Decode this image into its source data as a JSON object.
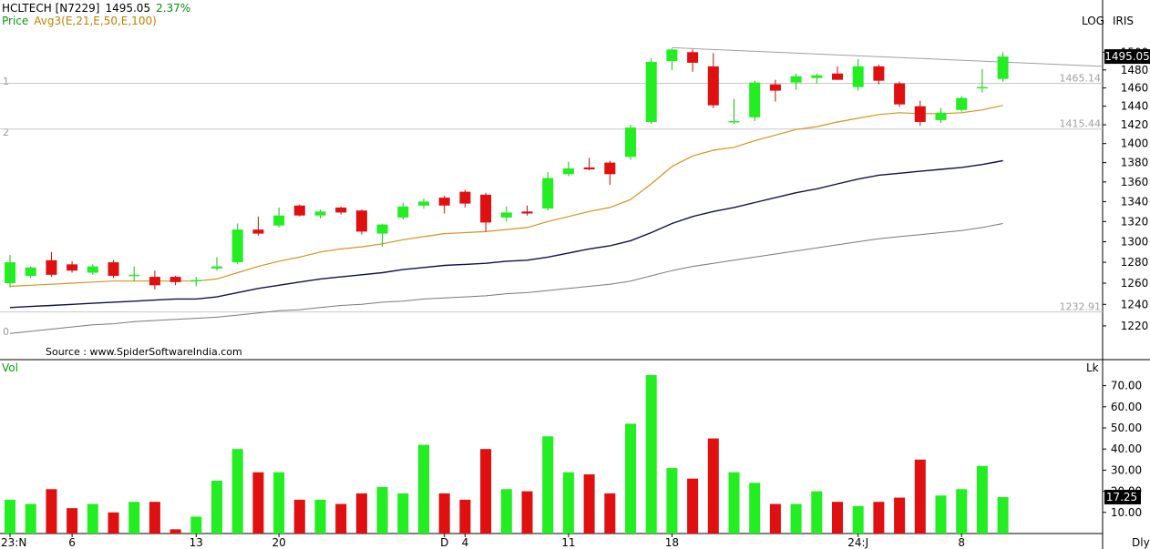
{
  "header": {
    "symbol": "HCLTECH [N7229]",
    "last": "1495.05",
    "change_pct": "2.37%",
    "legend_price": "Price",
    "legend_avg": "Avg3(E,21,E,50,E,100)",
    "scale_mode": "LOG",
    "source_tag": "IRIS",
    "source": "Source : www.SpiderSoftwareIndia.com"
  },
  "panel_labels": {
    "vol": "Vol",
    "vol_unit": "Lk",
    "timeframe": "Dly",
    "left_ticks": [
      "1",
      "2",
      "0"
    ]
  },
  "colors": {
    "up": "#22ee22",
    "down": "#e01010",
    "ema21": "#d4941c",
    "ema50": "#10104e",
    "ema100": "#7a7a7a",
    "trendline": "#a0a0a0",
    "hline": "#c8c8c8"
  },
  "chart_data": [
    {
      "type": "candlestick",
      "title": "HCLTECH [N7229]",
      "ylabel": "Price",
      "scale": "log",
      "ylim": [
        1200,
        1520
      ],
      "yticks": [
        1220,
        1240,
        1260,
        1280,
        1300,
        1320,
        1340,
        1360,
        1380,
        1400,
        1420,
        1440,
        1460,
        1480,
        1500
      ],
      "xticks": [
        {
          "index": 0,
          "label": "23:N"
        },
        {
          "index": 3,
          "label": "6"
        },
        {
          "index": 9,
          "label": "13"
        },
        {
          "index": 13,
          "label": "20"
        },
        {
          "index": 21,
          "label": "D"
        },
        {
          "index": 22,
          "label": "4"
        },
        {
          "index": 27,
          "label": "11"
        },
        {
          "index": 32,
          "label": "18"
        },
        {
          "index": 41,
          "label": "24:J"
        },
        {
          "index": 46,
          "label": "8"
        }
      ],
      "ohlc": [
        [
          1260,
          1287,
          1256,
          1280
        ],
        [
          1267,
          1276,
          1265,
          1275
        ],
        [
          1282,
          1290,
          1266,
          1268
        ],
        [
          1278,
          1281,
          1270,
          1272
        ],
        [
          1270,
          1278,
          1268,
          1276
        ],
        [
          1280,
          1282,
          1265,
          1267
        ],
        [
          1268,
          1276,
          1262,
          1268
        ],
        [
          1266,
          1272,
          1254,
          1258
        ],
        [
          1266,
          1267,
          1258,
          1261
        ],
        [
          1262,
          1266,
          1257,
          1263
        ],
        [
          1274,
          1285,
          1272,
          1276
        ],
        [
          1280,
          1318,
          1278,
          1312
        ],
        [
          1312,
          1325,
          1306,
          1308
        ],
        [
          1316,
          1334,
          1314,
          1326
        ],
        [
          1336,
          1337,
          1325,
          1326
        ],
        [
          1326,
          1332,
          1323,
          1330
        ],
        [
          1334,
          1335,
          1327,
          1329
        ],
        [
          1331,
          1332,
          1307,
          1310
        ],
        [
          1308,
          1318,
          1295,
          1317
        ],
        [
          1324,
          1339,
          1322,
          1335
        ],
        [
          1336,
          1343,
          1333,
          1340
        ],
        [
          1344,
          1346,
          1328,
          1336
        ],
        [
          1350,
          1352,
          1334,
          1338
        ],
        [
          1347,
          1349,
          1310,
          1319
        ],
        [
          1324,
          1335,
          1320,
          1329
        ],
        [
          1330,
          1336,
          1326,
          1328
        ],
        [
          1333,
          1370,
          1331,
          1364
        ],
        [
          1368,
          1381,
          1366,
          1374
        ],
        [
          1375,
          1385,
          1372,
          1373
        ],
        [
          1380,
          1382,
          1357,
          1368
        ],
        [
          1386,
          1420,
          1383,
          1417
        ],
        [
          1423,
          1493,
          1421,
          1489
        ],
        [
          1490,
          1504,
          1480,
          1503
        ],
        [
          1500,
          1503,
          1478,
          1488
        ],
        [
          1484,
          1499,
          1438,
          1441
        ],
        [
          1423,
          1448,
          1421,
          1424
        ],
        [
          1428,
          1468,
          1424,
          1466
        ],
        [
          1464,
          1469,
          1445,
          1457
        ],
        [
          1466,
          1476,
          1458,
          1473
        ],
        [
          1471,
          1476,
          1465,
          1474
        ],
        [
          1476,
          1484,
          1469,
          1469
        ],
        [
          1461,
          1492,
          1457,
          1484
        ],
        [
          1484,
          1486,
          1464,
          1468
        ],
        [
          1465,
          1467,
          1439,
          1442
        ],
        [
          1440,
          1446,
          1419,
          1423
        ],
        [
          1425,
          1438,
          1422,
          1433
        ],
        [
          1436,
          1451,
          1434,
          1449
        ],
        [
          1461,
          1481,
          1455,
          1461
        ],
        [
          1470,
          1500,
          1467,
          1495.05
        ]
      ],
      "ema21": [
        1257,
        1258,
        1259,
        1260,
        1261,
        1262,
        1262,
        1262,
        1262,
        1262,
        1264,
        1270,
        1276,
        1281,
        1285,
        1290,
        1293,
        1295,
        1298,
        1302,
        1305,
        1308,
        1309,
        1310,
        1312,
        1314,
        1320,
        1325,
        1330,
        1334,
        1342,
        1358,
        1376,
        1387,
        1393,
        1396,
        1403,
        1409,
        1415,
        1418,
        1423,
        1427,
        1431,
        1433,
        1432,
        1432,
        1433,
        1436,
        1441
      ],
      "ema50": [
        1237,
        1238,
        1239,
        1240,
        1241,
        1242,
        1243,
        1244,
        1245,
        1245,
        1247,
        1251,
        1255,
        1258,
        1261,
        1264,
        1266,
        1268,
        1270,
        1273,
        1275,
        1277,
        1278,
        1279,
        1281,
        1282,
        1285,
        1289,
        1293,
        1296,
        1301,
        1309,
        1318,
        1325,
        1330,
        1334,
        1339,
        1344,
        1349,
        1353,
        1358,
        1363,
        1367,
        1369,
        1371,
        1373,
        1375,
        1378,
        1382
      ],
      "ema100": [
        1213,
        1215,
        1217,
        1219,
        1221,
        1222,
        1224,
        1225,
        1226,
        1227,
        1228,
        1230,
        1232,
        1234,
        1235,
        1237,
        1239,
        1240,
        1242,
        1243,
        1245,
        1246,
        1247,
        1248,
        1250,
        1251,
        1253,
        1255,
        1257,
        1259,
        1262,
        1267,
        1272,
        1276,
        1279,
        1282,
        1285,
        1288,
        1291,
        1294,
        1297,
        1300,
        1303,
        1305,
        1307,
        1309,
        1311,
        1314,
        1318
      ],
      "hlines": [
        {
          "value": 1465.14,
          "label": "1465.14"
        },
        {
          "value": 1415.44,
          "label": "1415.44"
        },
        {
          "value": 1232.91,
          "label": "1232.91"
        }
      ],
      "trendline": [
        [
          32,
          1505
        ],
        [
          49,
          1484
        ]
      ],
      "last_price_label": "1495.05"
    },
    {
      "type": "bar",
      "ylabel": "Vol",
      "unit": "Lk",
      "ylim": [
        0,
        75
      ],
      "yticks": [
        10,
        20,
        30,
        40,
        50,
        60,
        70
      ],
      "ytick_labels": [
        "10.00",
        "20.00",
        "30.00",
        "40.00",
        "50.00",
        "60.00",
        "70.00"
      ],
      "values": [
        16,
        14,
        21,
        12,
        14,
        10,
        15,
        15,
        2,
        8,
        25,
        40,
        29,
        29,
        16,
        16,
        14,
        19,
        22,
        19,
        42,
        19,
        16,
        40,
        21,
        20,
        46,
        29,
        28,
        19,
        52,
        75,
        31,
        26,
        45,
        29,
        24,
        14,
        14,
        20,
        15,
        13,
        15,
        17,
        35,
        18,
        21,
        32,
        17.25
      ],
      "last_value_label": "17.25"
    }
  ]
}
